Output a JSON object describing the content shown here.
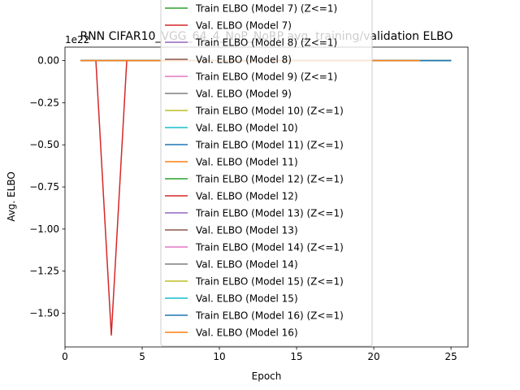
{
  "chart_data": {
    "type": "line",
    "title": "RNN CIFAR10_VGG_64_4_NoP_NoRP avg. training/validation ELBO",
    "xlabel": "Epoch",
    "ylabel": "Avg. ELBO",
    "offset_label": "1e22",
    "xlim": [
      0,
      26.1
    ],
    "ylim": [
      -1.7e+22,
      8e+20
    ],
    "x_ticks": [
      0,
      5,
      10,
      15,
      20,
      25
    ],
    "x_tick_labels": [
      "0",
      "5",
      "10",
      "15",
      "20",
      "25"
    ],
    "y_ticks": [
      0,
      -2.5e+21,
      -5e+21,
      -7.5e+21,
      -1e+22,
      -1.25e+22,
      -1.5e+22
    ],
    "y_tick_labels": [
      "0.00",
      "−0.25",
      "−0.50",
      "−0.75",
      "−1.00",
      "−1.25",
      "−1.50"
    ],
    "grid": false,
    "legend_placement": "upper-center",
    "series": [
      {
        "name": "Train ELBO (Model 7) (Z<=1)",
        "color": "#2ca02c",
        "x": [
          1,
          25
        ],
        "y": [
          0,
          0
        ]
      },
      {
        "name": "Val. ELBO (Model 7)",
        "color": "#d62728",
        "x": [
          1,
          2,
          3,
          4,
          5,
          25
        ],
        "y": [
          0,
          0,
          -1.63e+22,
          0,
          0,
          0
        ]
      },
      {
        "name": "Train ELBO (Model 8) (Z<=1)",
        "color": "#9467bd",
        "x": [
          1,
          25
        ],
        "y": [
          0,
          0
        ]
      },
      {
        "name": "Val. ELBO (Model 8)",
        "color": "#8c564b",
        "x": [
          1,
          25
        ],
        "y": [
          0,
          0
        ]
      },
      {
        "name": "Train ELBO (Model 9) (Z<=1)",
        "color": "#e377c2",
        "x": [
          1,
          25
        ],
        "y": [
          0,
          0
        ]
      },
      {
        "name": "Val. ELBO (Model 9)",
        "color": "#7f7f7f",
        "x": [
          1,
          25
        ],
        "y": [
          0,
          0
        ]
      },
      {
        "name": "Train ELBO (Model 10) (Z<=1)",
        "color": "#bcbd22",
        "x": [
          1,
          25
        ],
        "y": [
          0,
          0
        ]
      },
      {
        "name": "Val. ELBO (Model 10)",
        "color": "#17becf",
        "x": [
          1,
          25
        ],
        "y": [
          0,
          0
        ]
      },
      {
        "name": "Train ELBO (Model 11) (Z<=1)",
        "color": "#1f77b4",
        "x": [
          1,
          25
        ],
        "y": [
          0,
          0
        ]
      },
      {
        "name": "Val. ELBO (Model 11)",
        "color": "#ff7f0e",
        "x": [
          1,
          25
        ],
        "y": [
          0,
          0
        ]
      },
      {
        "name": "Train ELBO (Model 12) (Z<=1)",
        "color": "#2ca02c",
        "x": [
          1,
          25
        ],
        "y": [
          0,
          0
        ]
      },
      {
        "name": "Val. ELBO (Model 12)",
        "color": "#d62728",
        "x": [
          1,
          25
        ],
        "y": [
          0,
          0
        ]
      },
      {
        "name": "Train ELBO (Model 13) (Z<=1)",
        "color": "#9467bd",
        "x": [
          1,
          25
        ],
        "y": [
          0,
          0
        ]
      },
      {
        "name": "Val. ELBO (Model 13)",
        "color": "#8c564b",
        "x": [
          1,
          25
        ],
        "y": [
          0,
          0
        ]
      },
      {
        "name": "Train ELBO (Model 14) (Z<=1)",
        "color": "#e377c2",
        "x": [
          1,
          25
        ],
        "y": [
          0,
          0
        ]
      },
      {
        "name": "Val. ELBO (Model 14)",
        "color": "#7f7f7f",
        "x": [
          1,
          25
        ],
        "y": [
          0,
          0
        ]
      },
      {
        "name": "Train ELBO (Model 15) (Z<=1)",
        "color": "#bcbd22",
        "x": [
          1,
          25
        ],
        "y": [
          0,
          0
        ]
      },
      {
        "name": "Val. ELBO (Model 15)",
        "color": "#17becf",
        "x": [
          1,
          25
        ],
        "y": [
          0,
          0
        ]
      },
      {
        "name": "Train ELBO (Model 16) (Z<=1)",
        "color": "#1f77b4",
        "x": [
          1,
          25
        ],
        "y": [
          0,
          0
        ]
      },
      {
        "name": "Val. ELBO (Model 16)",
        "color": "#ff7f0e",
        "x": [
          1,
          23
        ],
        "y": [
          0,
          0
        ]
      }
    ]
  }
}
